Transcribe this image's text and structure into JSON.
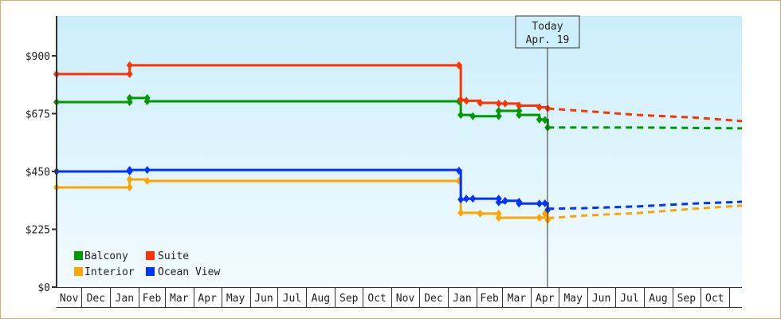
{
  "chart_data": {
    "type": "line",
    "title": "",
    "xlabel": "",
    "ylabel": "",
    "x_domain": [
      "2021-11-04",
      "2023-11-15"
    ],
    "ylim": [
      0,
      1000
    ],
    "y_ticks": [
      {
        "value": 0,
        "label": "$0"
      },
      {
        "value": 225,
        "label": "$225"
      },
      {
        "value": 450,
        "label": "$450"
      },
      {
        "value": 675,
        "label": "$675"
      },
      {
        "value": 900,
        "label": "$900"
      }
    ],
    "x_months": [
      {
        "start": "2021-11-04",
        "label": "Nov"
      },
      {
        "start": "2021-12-01",
        "label": "Dec"
      },
      {
        "start": "2022-01-01",
        "label": "Jan"
      },
      {
        "start": "2022-02-01",
        "label": "Feb"
      },
      {
        "start": "2022-03-01",
        "label": "Mar"
      },
      {
        "start": "2022-04-01",
        "label": "Apr"
      },
      {
        "start": "2022-05-01",
        "label": "May"
      },
      {
        "start": "2022-06-01",
        "label": "Jun"
      },
      {
        "start": "2022-07-01",
        "label": "Jul"
      },
      {
        "start": "2022-08-01",
        "label": "Aug"
      },
      {
        "start": "2022-09-01",
        "label": "Sep"
      },
      {
        "start": "2022-10-01",
        "label": "Oct"
      },
      {
        "start": "2022-11-01",
        "label": "Nov"
      },
      {
        "start": "2022-12-01",
        "label": "Dec"
      },
      {
        "start": "2023-01-01",
        "label": "Jan"
      },
      {
        "start": "2023-02-01",
        "label": "Feb"
      },
      {
        "start": "2023-03-01",
        "label": "Mar"
      },
      {
        "start": "2023-04-01",
        "label": "Apr"
      },
      {
        "start": "2023-05-01",
        "label": "May"
      },
      {
        "start": "2023-06-01",
        "label": "Jun"
      },
      {
        "start": "2023-07-01",
        "label": "Jul"
      },
      {
        "start": "2023-08-01",
        "label": "Aug"
      },
      {
        "start": "2023-09-01",
        "label": "Sep"
      },
      {
        "start": "2023-10-01",
        "label": "Oct"
      },
      {
        "start": "2023-11-01",
        "label": ""
      }
    ],
    "today": {
      "date": "2023-04-19",
      "label1": "Today",
      "label2": "Apr. 19"
    },
    "grid": false,
    "legend_position": "bottom-left",
    "series": [
      {
        "name": "Balcony",
        "color": "#009900",
        "history": [
          [
            "2021-11-04",
            720
          ],
          [
            "2022-01-22",
            720
          ],
          [
            "2022-01-22",
            736
          ],
          [
            "2022-02-10",
            736
          ],
          [
            "2022-02-10",
            723
          ],
          [
            "2023-01-13",
            723
          ],
          [
            "2023-01-15",
            670
          ],
          [
            "2023-01-28",
            665
          ],
          [
            "2023-02-25",
            665
          ],
          [
            "2023-02-25",
            686
          ],
          [
            "2023-03-19",
            686
          ],
          [
            "2023-03-19",
            670
          ],
          [
            "2023-04-10",
            652
          ],
          [
            "2023-04-16",
            650
          ],
          [
            "2023-04-19",
            621
          ]
        ],
        "forecast": [
          [
            "2023-04-19",
            621
          ],
          [
            "2023-07-25",
            621
          ],
          [
            "2023-11-15",
            618
          ]
        ]
      },
      {
        "name": "Suite",
        "color": "#ff3300",
        "history": [
          [
            "2021-11-04",
            829
          ],
          [
            "2022-01-22",
            829
          ],
          [
            "2022-01-22",
            863
          ],
          [
            "2023-01-13",
            863
          ],
          [
            "2023-01-15",
            728
          ],
          [
            "2023-01-21",
            725
          ],
          [
            "2023-02-05",
            717
          ],
          [
            "2023-02-25",
            714
          ],
          [
            "2023-03-04",
            714
          ],
          [
            "2023-03-19",
            706
          ],
          [
            "2023-04-10",
            700
          ],
          [
            "2023-04-19",
            695
          ]
        ],
        "forecast": [
          [
            "2023-04-19",
            695
          ],
          [
            "2023-05-26",
            686
          ],
          [
            "2023-07-25",
            670
          ],
          [
            "2023-09-24",
            660
          ],
          [
            "2023-11-15",
            646
          ]
        ]
      },
      {
        "name": "Interior",
        "color": "#ffa500",
        "history": [
          [
            "2021-11-04",
            388
          ],
          [
            "2022-01-22",
            388
          ],
          [
            "2022-01-22",
            419
          ],
          [
            "2022-02-10",
            413
          ],
          [
            "2023-01-13",
            413
          ],
          [
            "2023-01-15",
            289
          ],
          [
            "2023-02-05",
            286
          ],
          [
            "2023-02-25",
            286
          ],
          [
            "2023-02-25",
            270
          ],
          [
            "2023-04-10",
            270
          ],
          [
            "2023-04-16",
            285
          ],
          [
            "2023-04-19",
            261
          ]
        ],
        "forecast": [
          [
            "2023-04-19",
            268
          ],
          [
            "2023-05-26",
            278
          ],
          [
            "2023-07-25",
            288
          ],
          [
            "2023-09-24",
            305
          ],
          [
            "2023-11-15",
            317
          ]
        ]
      },
      {
        "name": "Ocean View",
        "color": "#0033ff",
        "history": [
          [
            "2021-11-04",
            450
          ],
          [
            "2022-01-22",
            450
          ],
          [
            "2022-01-22",
            456
          ],
          [
            "2022-02-10",
            456
          ],
          [
            "2023-01-13",
            453
          ],
          [
            "2023-01-15",
            341
          ],
          [
            "2023-01-21",
            344
          ],
          [
            "2023-01-28",
            344
          ],
          [
            "2023-02-25",
            344
          ],
          [
            "2023-02-25",
            330
          ],
          [
            "2023-03-04",
            336
          ],
          [
            "2023-03-19",
            332
          ],
          [
            "2023-03-19",
            325
          ],
          [
            "2023-04-10",
            325
          ],
          [
            "2023-04-16",
            326
          ],
          [
            "2023-04-19",
            301
          ]
        ],
        "forecast": [
          [
            "2023-04-19",
            305
          ],
          [
            "2023-05-26",
            307
          ],
          [
            "2023-07-25",
            314
          ],
          [
            "2023-09-24",
            325
          ],
          [
            "2023-11-15",
            332
          ]
        ]
      }
    ]
  }
}
